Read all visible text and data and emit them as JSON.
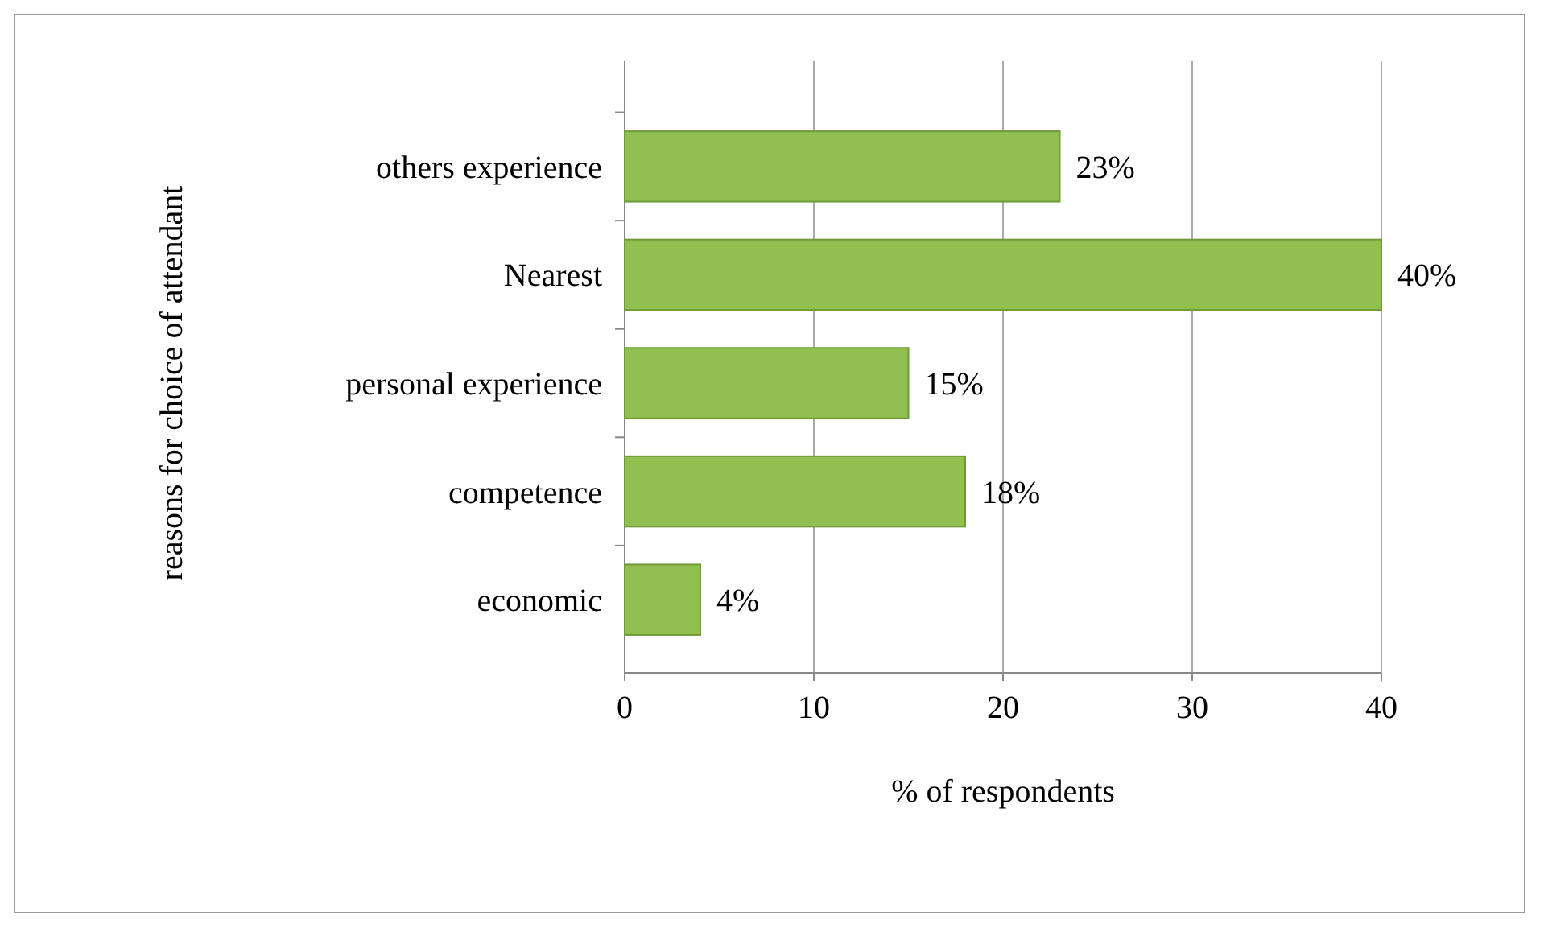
{
  "chart_data": {
    "type": "bar",
    "orientation": "horizontal",
    "xlabel": "% of respondents",
    "ylabel": "reasons for choice of attendant",
    "categories": [
      "others experience",
      "Nearest",
      "personal experience",
      "competence",
      "economic"
    ],
    "values": [
      23,
      40,
      15,
      18,
      4
    ],
    "value_labels": [
      "23%",
      "40%",
      "15%",
      "18%",
      "4%"
    ],
    "color": "#92c050",
    "xlim": [
      0,
      40
    ],
    "xticks": [
      0,
      10,
      20,
      30,
      40
    ],
    "grid": "x"
  }
}
